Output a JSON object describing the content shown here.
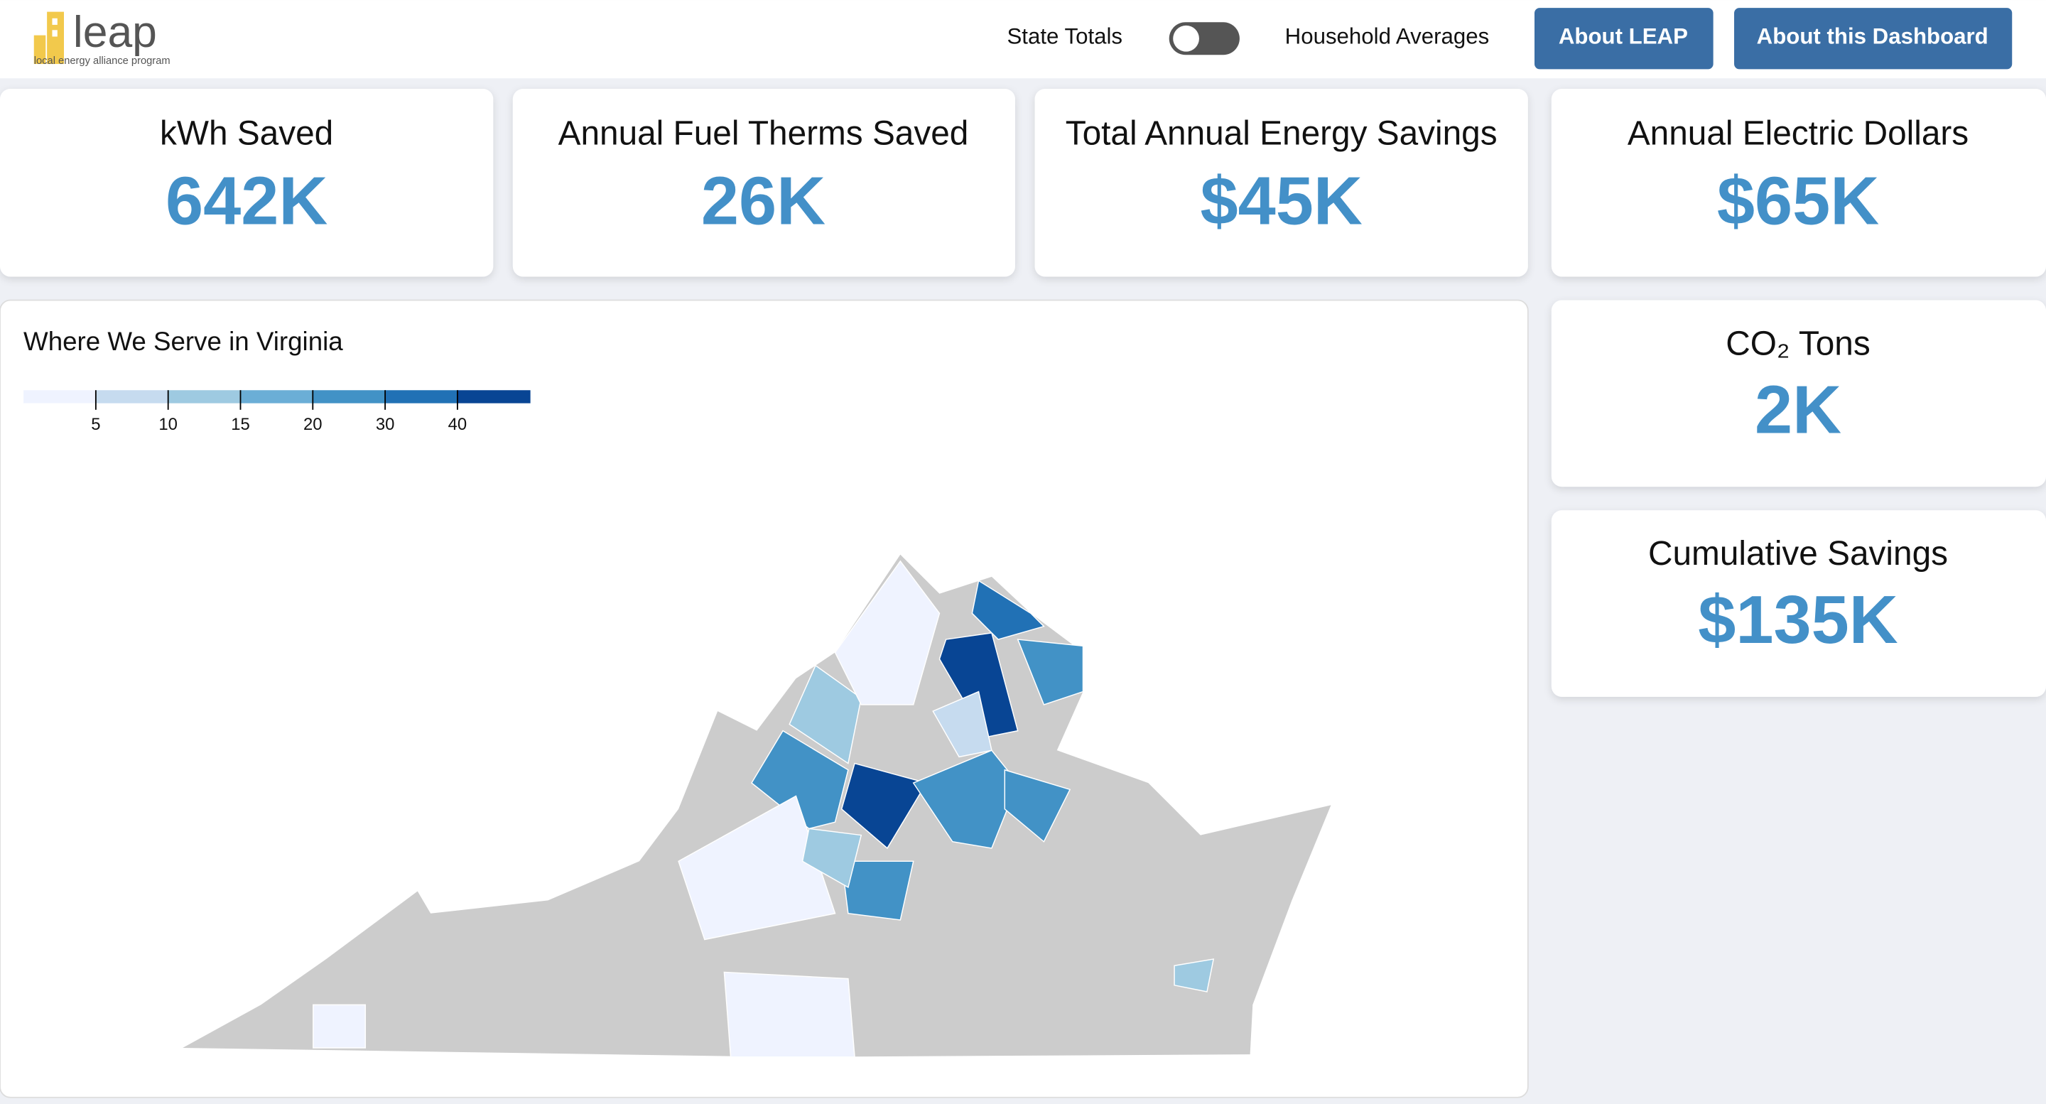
{
  "header": {
    "logo": "leap",
    "tagline": "local energy alliance program",
    "toggle_left": "State Totals",
    "toggle_right": "Household Averages",
    "buttons": [
      "About LEAP",
      "About this Dashboard"
    ]
  },
  "cards": [
    {
      "title": "kWh Saved",
      "value": "642K"
    },
    {
      "title": "Annual Fuel Therms Saved",
      "value": "26K"
    },
    {
      "title": "Total Annual Energy Savings",
      "value": "$45K"
    },
    {
      "title": "Annual Electric Dollars",
      "value": "$65K"
    },
    {
      "title": "CO₂ Tons",
      "value": "2K"
    },
    {
      "title": "Cumulative Savings",
      "value": "$135K"
    }
  ],
  "map": {
    "title": "Where We Serve in Virginia",
    "legend": {
      "thresholds": [
        5,
        10,
        15,
        20,
        30,
        40
      ],
      "colors": [
        "#eff3ff",
        "#c6dbef",
        "#9ecae1",
        "#6baed6",
        "#4292c6",
        "#2171b5",
        "#084594"
      ]
    },
    "no_data_color": "#cccccc",
    "region_values": [
      45,
      45,
      35,
      25,
      25,
      25,
      25,
      25,
      12,
      7,
      12,
      3,
      3,
      3,
      3,
      12
    ]
  }
}
